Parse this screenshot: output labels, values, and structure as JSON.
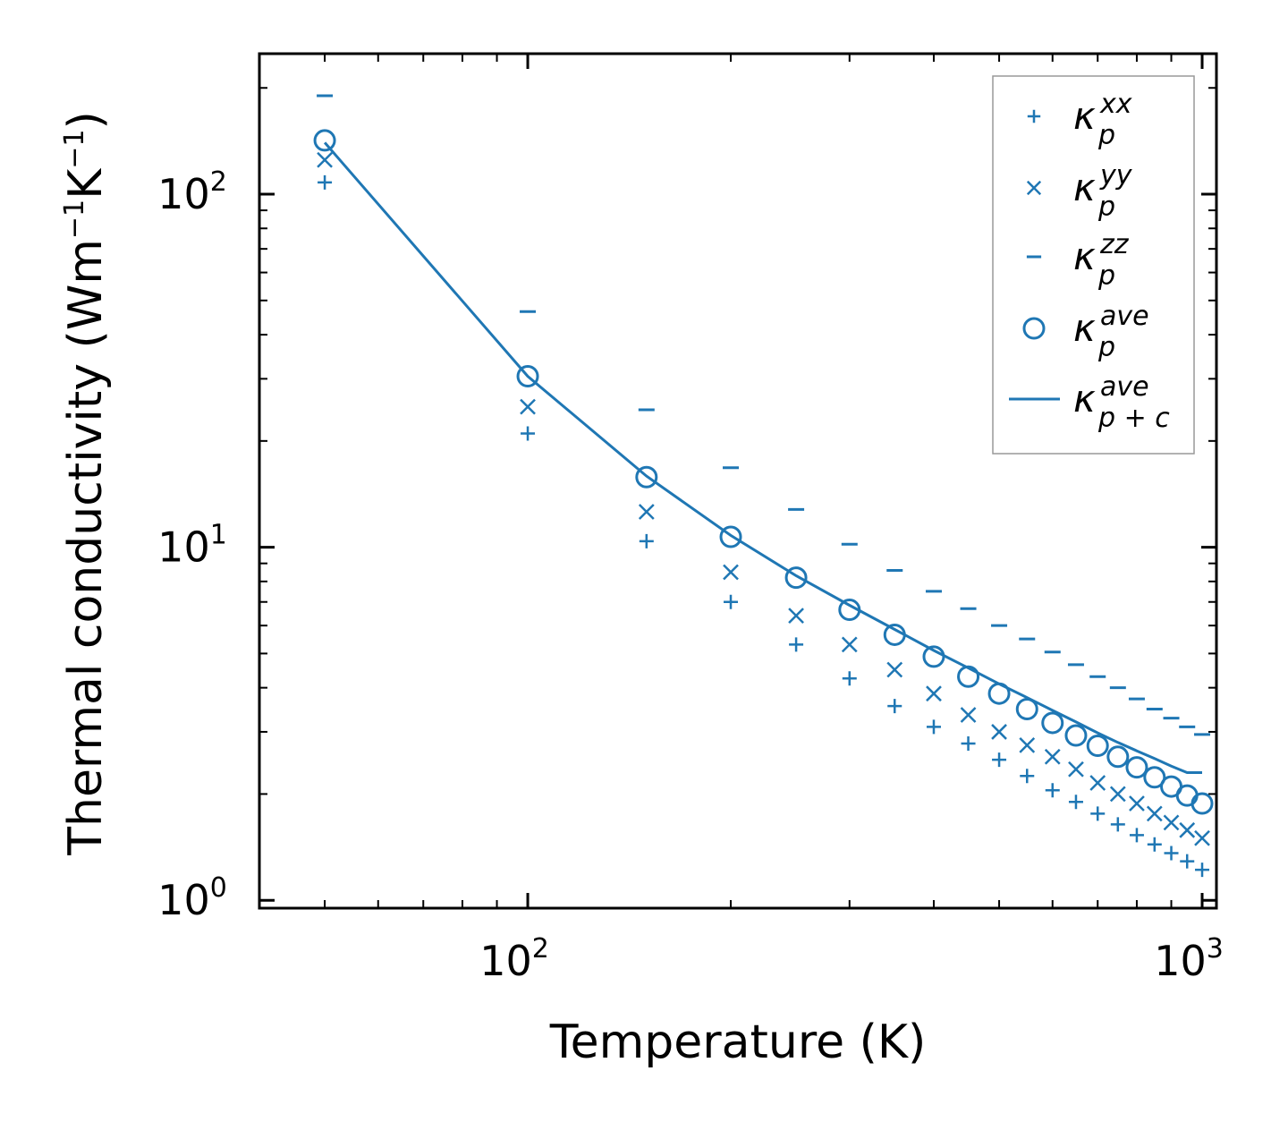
{
  "chart_data": {
    "type": "scatter",
    "title": "",
    "xlabel": "Temperature (K)",
    "ylabel": {
      "base": "Thermal conductivity (Wm",
      "exp1": "−1",
      "mid": "K",
      "exp2": "−1",
      "close": ")"
    },
    "xscale": "log",
    "yscale": "log",
    "xlim": [
      40,
      1050
    ],
    "ylim": [
      0.95,
      250
    ],
    "xticks": [
      {
        "base": "10",
        "exp": "2",
        "value": 100
      },
      {
        "base": "10",
        "exp": "3",
        "value": 1000
      }
    ],
    "yticks": [
      {
        "base": "10",
        "exp": "0",
        "value": 1
      },
      {
        "base": "10",
        "exp": "1",
        "value": 10
      },
      {
        "base": "10",
        "exp": "2",
        "value": 100
      }
    ],
    "legend_position": "top-right",
    "color": "#1f77b4",
    "x": [
      50,
      100,
      150,
      200,
      250,
      300,
      350,
      400,
      450,
      500,
      550,
      600,
      650,
      700,
      750,
      800,
      850,
      900,
      950,
      1000
    ],
    "series": [
      {
        "name": "kappa_p_xx",
        "label_main": "κ",
        "label_sub": "p",
        "label_sup": "xx",
        "marker": "plus",
        "values": [
          108,
          21,
          10.4,
          7.0,
          5.3,
          4.25,
          3.55,
          3.1,
          2.78,
          2.5,
          2.25,
          2.05,
          1.9,
          1.76,
          1.64,
          1.53,
          1.44,
          1.36,
          1.29,
          1.22
        ]
      },
      {
        "name": "kappa_p_yy",
        "label_main": "κ",
        "label_sub": "p",
        "label_sup": "yy",
        "marker": "x",
        "values": [
          125,
          25,
          12.6,
          8.5,
          6.4,
          5.3,
          4.5,
          3.85,
          3.35,
          3.0,
          2.75,
          2.55,
          2.35,
          2.15,
          2.0,
          1.88,
          1.76,
          1.66,
          1.58,
          1.5
        ]
      },
      {
        "name": "kappa_p_zz",
        "label_main": "κ",
        "label_sub": "p",
        "label_sup": "zz",
        "marker": "hline",
        "values": [
          190,
          46.5,
          24.5,
          16.8,
          12.8,
          10.2,
          8.6,
          7.5,
          6.7,
          6.0,
          5.5,
          5.05,
          4.65,
          4.3,
          4.0,
          3.72,
          3.48,
          3.28,
          3.1,
          2.95
        ]
      },
      {
        "name": "kappa_p_ave",
        "label_main": "κ",
        "label_sub": "p",
        "label_sup": "ave",
        "marker": "circle",
        "values": [
          142,
          30.5,
          15.8,
          10.7,
          8.2,
          6.65,
          5.65,
          4.9,
          4.3,
          3.85,
          3.48,
          3.18,
          2.93,
          2.74,
          2.55,
          2.38,
          2.23,
          2.1,
          1.98,
          1.88
        ]
      },
      {
        "name": "kappa_p_c_ave",
        "label_main": "κ",
        "label_sub": "p + c",
        "label_sup": "ave",
        "marker": "line",
        "values": [
          140,
          30.5,
          15.9,
          10.8,
          8.3,
          6.85,
          5.85,
          5.1,
          4.55,
          4.1,
          3.75,
          3.45,
          3.2,
          2.98,
          2.8,
          2.65,
          2.52,
          2.4,
          2.3,
          2.3
        ]
      }
    ]
  }
}
